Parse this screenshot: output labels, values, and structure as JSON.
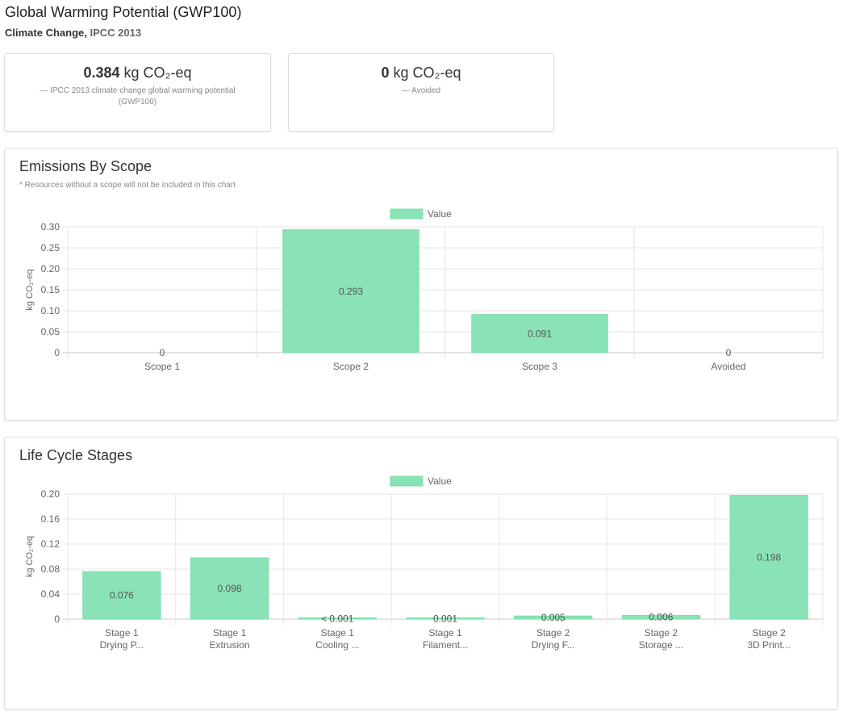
{
  "header": {
    "title": "Global Warming Potential (GWP100)",
    "subtitle_category": "Climate Change,",
    "subtitle_method": "IPCC 2013"
  },
  "metrics": [
    {
      "value": "0.384",
      "unit": "kg CO₂-eq",
      "description": "—  IPCC 2013 climate change global warming potential (GWP100)"
    },
    {
      "value": "0",
      "unit": "kg CO₂-eq",
      "description": "—  Avoided"
    }
  ],
  "scope_panel": {
    "title": "Emissions By Scope",
    "note": "* Resources without a scope will not be included in this chart"
  },
  "stages_panel": {
    "title": "Life Cycle Stages"
  },
  "colors": {
    "bar_fill": "#8ae3b6",
    "bar_stroke": "#7ddcab",
    "grid": "#e6e6e6",
    "axis_text": "#666666"
  },
  "chart_data": [
    {
      "type": "bar",
      "title": "Emissions By Scope",
      "legend": "Value",
      "ylabel": "kg CO₂-eq",
      "categories": [
        "Scope 1",
        "Scope 2",
        "Scope 3",
        "Avoided"
      ],
      "values": [
        0,
        0.293,
        0.091,
        0
      ],
      "data_labels": [
        "0",
        "0.293",
        "0.091",
        "0"
      ],
      "yticks": [
        "0",
        "0.05",
        "0.10",
        "0.15",
        "0.20",
        "0.25",
        "0.30"
      ],
      "ylim": [
        0,
        0.3
      ]
    },
    {
      "type": "bar",
      "title": "Life Cycle Stages",
      "legend": "Value",
      "ylabel": "kg CO₂-eq",
      "categories": [
        [
          "Stage 1",
          "Drying P..."
        ],
        [
          "Stage 1",
          "Extrusion"
        ],
        [
          "Stage 1",
          "Cooling ..."
        ],
        [
          "Stage 1",
          "Filament..."
        ],
        [
          "Stage 2",
          "Drying F..."
        ],
        [
          "Stage 2",
          "Storage ..."
        ],
        [
          "Stage 2",
          "3D Print..."
        ]
      ],
      "values": [
        0.076,
        0.098,
        0.0004,
        0.001,
        0.005,
        0.006,
        0.198
      ],
      "data_labels": [
        "0.076",
        "0.098",
        "< 0.001",
        "0.001",
        "0.005",
        "0.006",
        "0.198"
      ],
      "yticks": [
        "0",
        "0.04",
        "0.08",
        "0.12",
        "0.16",
        "0.20"
      ],
      "ylim": [
        0,
        0.2
      ]
    }
  ]
}
